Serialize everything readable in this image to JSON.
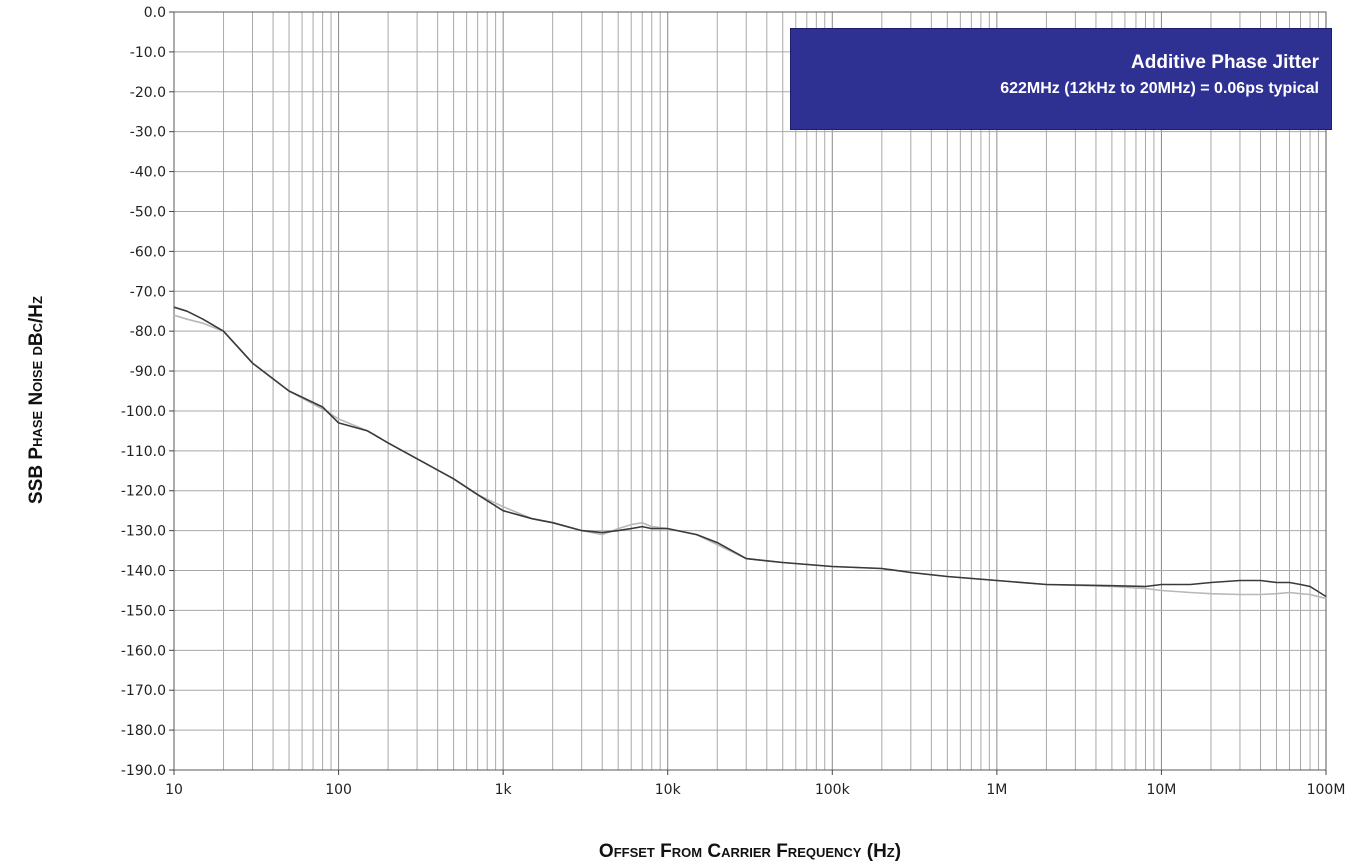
{
  "chart_data": {
    "type": "line",
    "xscale": "log",
    "xlim": [
      10,
      100000000
    ],
    "ylim": [
      -190,
      0
    ],
    "grid": true,
    "xlabel": "Offset From Carrier Frequency (Hz)",
    "ylabel": "SSB Phase Noise dBc/Hz",
    "xticks": [
      {
        "value": 10,
        "label": "10"
      },
      {
        "value": 100,
        "label": "100"
      },
      {
        "value": 1000,
        "label": "1k"
      },
      {
        "value": 10000,
        "label": "10k"
      },
      {
        "value": 100000,
        "label": "100k"
      },
      {
        "value": 1000000,
        "label": "1M"
      },
      {
        "value": 10000000,
        "label": "10M"
      },
      {
        "value": 100000000,
        "label": "100M"
      }
    ],
    "yticks": [
      {
        "value": 0,
        "label": "0.0"
      },
      {
        "value": -10,
        "label": "-10.0"
      },
      {
        "value": -20,
        "label": "-20.0"
      },
      {
        "value": -30,
        "label": "-30.0"
      },
      {
        "value": -40,
        "label": "-40.0"
      },
      {
        "value": -50,
        "label": "-50.0"
      },
      {
        "value": -60,
        "label": "-60.0"
      },
      {
        "value": -70,
        "label": "-70.0"
      },
      {
        "value": -80,
        "label": "-80.0"
      },
      {
        "value": -90,
        "label": "-90.0"
      },
      {
        "value": -100,
        "label": "-100.0"
      },
      {
        "value": -110,
        "label": "-110.0"
      },
      {
        "value": -120,
        "label": "-120.0"
      },
      {
        "value": -130,
        "label": "-130.0"
      },
      {
        "value": -140,
        "label": "-140.0"
      },
      {
        "value": -150,
        "label": "-150.0"
      },
      {
        "value": -160,
        "label": "-160.0"
      },
      {
        "value": -170,
        "label": "-170.0"
      },
      {
        "value": -180,
        "label": "-180.0"
      },
      {
        "value": -190,
        "label": "-190.0"
      }
    ],
    "annotation": {
      "title": "Additive Phase Jitter",
      "text": "622MHz (12kHz to 20MHz) = 0.06ps typical",
      "background": "#2e3192"
    },
    "series": [
      {
        "color": "#3a3a3a",
        "x": [
          10,
          12,
          15,
          20,
          30,
          50,
          80,
          100,
          150,
          200,
          300,
          500,
          700,
          1000,
          1500,
          2000,
          3000,
          4000,
          5000,
          6000,
          7000,
          8000,
          10000,
          15000,
          20000,
          30000,
          50000,
          100000,
          200000,
          300000,
          500000,
          1000000,
          2000000,
          5000000,
          8000000,
          10000000,
          15000000,
          20000000,
          30000000,
          40000000,
          50000000,
          60000000,
          70000000,
          80000000,
          100000000
        ],
        "y": [
          -74,
          -75,
          -77,
          -80,
          -88,
          -95,
          -99,
          -103,
          -105,
          -108,
          -112,
          -117,
          -121,
          -125,
          -127,
          -128,
          -130,
          -130.5,
          -130,
          -129.5,
          -129,
          -129.5,
          -129.5,
          -131,
          -133,
          -137,
          -138,
          -139,
          -139.5,
          -140.5,
          -141.5,
          -142.5,
          -143.5,
          -143.8,
          -144,
          -143.5,
          -143.5,
          -143,
          -142.5,
          -142.5,
          -143,
          -143,
          -143.5,
          -144,
          -146.5
        ]
      },
      {
        "color": "#b8b8b8",
        "x": [
          10,
          12,
          15,
          20,
          30,
          50,
          80,
          100,
          150,
          200,
          300,
          500,
          700,
          1000,
          1500,
          2000,
          3000,
          4000,
          5000,
          6000,
          7000,
          8000,
          10000,
          15000,
          20000,
          30000,
          50000,
          100000,
          200000,
          300000,
          500000,
          1000000,
          2000000,
          5000000,
          8000000,
          10000000,
          15000000,
          20000000,
          30000000,
          40000000,
          50000000,
          60000000,
          70000000,
          80000000,
          100000000
        ],
        "y": [
          -76,
          -77,
          -78,
          -80,
          -88,
          -95,
          -99.5,
          -102,
          -105,
          -108,
          -112,
          -117,
          -121,
          -124,
          -127,
          -128,
          -130,
          -131,
          -129.5,
          -128.5,
          -128,
          -129,
          -129.5,
          -131,
          -133.5,
          -137,
          -138,
          -139,
          -139.5,
          -140.5,
          -141.5,
          -142.5,
          -143.5,
          -144,
          -144.5,
          -145,
          -145.5,
          -145.8,
          -146,
          -146,
          -145.8,
          -145.5,
          -145.8,
          -146,
          -147
        ]
      }
    ]
  }
}
